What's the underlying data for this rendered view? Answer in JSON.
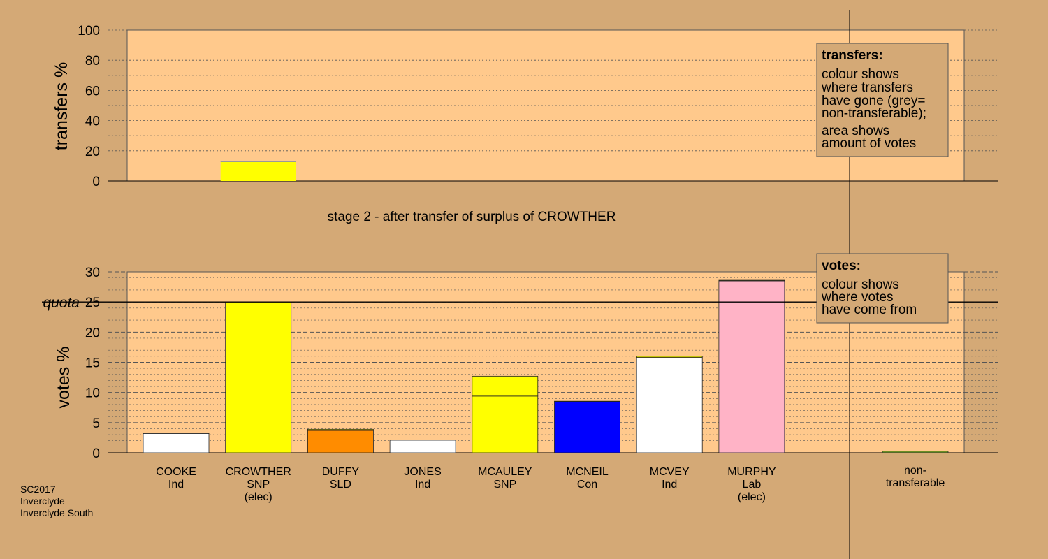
{
  "footer": [
    "SC2017",
    "Inverclyde",
    "Inverclyde South"
  ],
  "stage_label": "stage 2 - after transfer of surplus of CROWTHER",
  "legend_transfers": {
    "title": "transfers:",
    "lines": [
      "colour shows",
      "where transfers",
      "have gone (grey=",
      "non-transferable);",
      "area shows",
      "amount of votes"
    ]
  },
  "legend_votes": {
    "title": "votes:",
    "lines": [
      "colour shows",
      "where votes",
      "have come from"
    ]
  },
  "colors": {
    "background": "#d4a976",
    "plot_background": "#ffc98c",
    "legend_background": "#d4a976",
    "SNP": "#ffff00",
    "Ind": "#ffffff",
    "SLD": "#ff8c00",
    "Con": "#0000ff",
    "Lab": "#ffb3c6",
    "non_transferable": "#999999"
  },
  "chart_data": [
    {
      "type": "bar",
      "name": "transfers",
      "ylabel": "transfers %",
      "ylim": [
        0,
        100
      ],
      "yticks": [
        0,
        20,
        40,
        60,
        80,
        100
      ],
      "bars": [
        {
          "candidate_index": 1,
          "segments": [
            {
              "value": 12.5,
              "color": "#ffff00"
            },
            {
              "value": 0.8,
              "color": "#999999"
            }
          ]
        }
      ]
    },
    {
      "type": "bar",
      "name": "votes",
      "ylabel": "votes %",
      "ylim": [
        0,
        30
      ],
      "yticks": [
        0,
        5,
        10,
        15,
        20,
        25,
        30
      ],
      "quota": 25,
      "quota_label": "quota",
      "candidates": [
        {
          "name": "COOKE",
          "party": "Ind",
          "note": "",
          "segments": [
            {
              "value": 3.2,
              "color": "#ffffff"
            },
            {
              "value": 0.1,
              "color": "#ffff00"
            }
          ]
        },
        {
          "name": "CROWTHER",
          "party": "SNP",
          "note": "(elec)",
          "segments": [
            {
              "value": 25.0,
              "color": "#ffff00"
            }
          ]
        },
        {
          "name": "DUFFY",
          "party": "SLD",
          "note": "",
          "segments": [
            {
              "value": 3.7,
              "color": "#ff8c00"
            },
            {
              "value": 0.2,
              "color": "#ffff00"
            }
          ]
        },
        {
          "name": "JONES",
          "party": "Ind",
          "note": "",
          "segments": [
            {
              "value": 2.1,
              "color": "#ffffff"
            },
            {
              "value": 0.05,
              "color": "#ffff00"
            }
          ]
        },
        {
          "name": "MCAULEY",
          "party": "SNP",
          "note": "",
          "segments": [
            {
              "value": 9.4,
              "color": "#ffff00"
            },
            {
              "value": 3.3,
              "color": "#ffff00"
            }
          ]
        },
        {
          "name": "MCNEIL",
          "party": "Con",
          "note": "",
          "segments": [
            {
              "value": 8.5,
              "color": "#0000ff"
            },
            {
              "value": 0.05,
              "color": "#ffff00"
            }
          ]
        },
        {
          "name": "MCVEY",
          "party": "Ind",
          "note": "",
          "segments": [
            {
              "value": 15.8,
              "color": "#ffffff"
            },
            {
              "value": 0.2,
              "color": "#ffff00"
            }
          ]
        },
        {
          "name": "MURPHY",
          "party": "Lab",
          "note": "(elec)",
          "segments": [
            {
              "value": 28.5,
              "color": "#ffb3c6"
            },
            {
              "value": 0.1,
              "color": "#ffff00"
            }
          ]
        }
      ],
      "non_transferable": {
        "label_lines": [
          "non-",
          "transferable"
        ],
        "value": 0.3,
        "color": "#6b8e23"
      }
    }
  ]
}
